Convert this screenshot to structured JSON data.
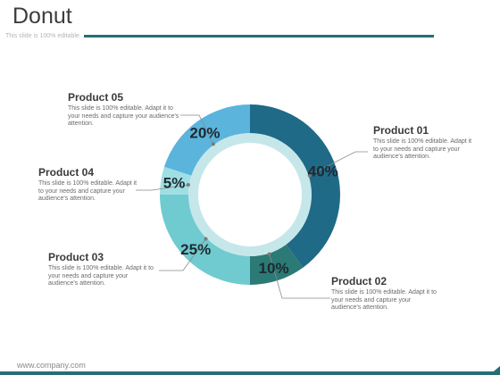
{
  "slide": {
    "title": "Donut",
    "subtitle": "This slide is 100% editable.",
    "footer_url": "www.company.com"
  },
  "colors": {
    "accent": "#236e77",
    "product01": "#1f6a87",
    "product02": "#2b7a76",
    "product03": "#6fcbd0",
    "product04": "#9fdfe4",
    "product05": "#5bb4dc",
    "inner_ring": "#c6e7ea"
  },
  "chart_data": {
    "type": "pie",
    "title": "",
    "categories": [
      "Product 01",
      "Product 02",
      "Product 03",
      "Product 04",
      "Product 05"
    ],
    "values": [
      40,
      10,
      25,
      5,
      20
    ],
    "value_labels": [
      "40%",
      "10%",
      "25%",
      "5%",
      "20%"
    ],
    "descriptions": [
      "This slide is 100% editable. Adapt it to your needs and capture your audience's attention.",
      "This slide is 100% editable. Adapt it to your needs and capture your audience's attention.",
      "This slide is 100% editable. Adapt it to your needs and capture your audience's attention.",
      "This slide is 100% editable. Adapt it to your needs and capture your audience's attention.",
      "This slide is 100% editable. Adapt it to your needs and capture your audience's attention."
    ]
  }
}
